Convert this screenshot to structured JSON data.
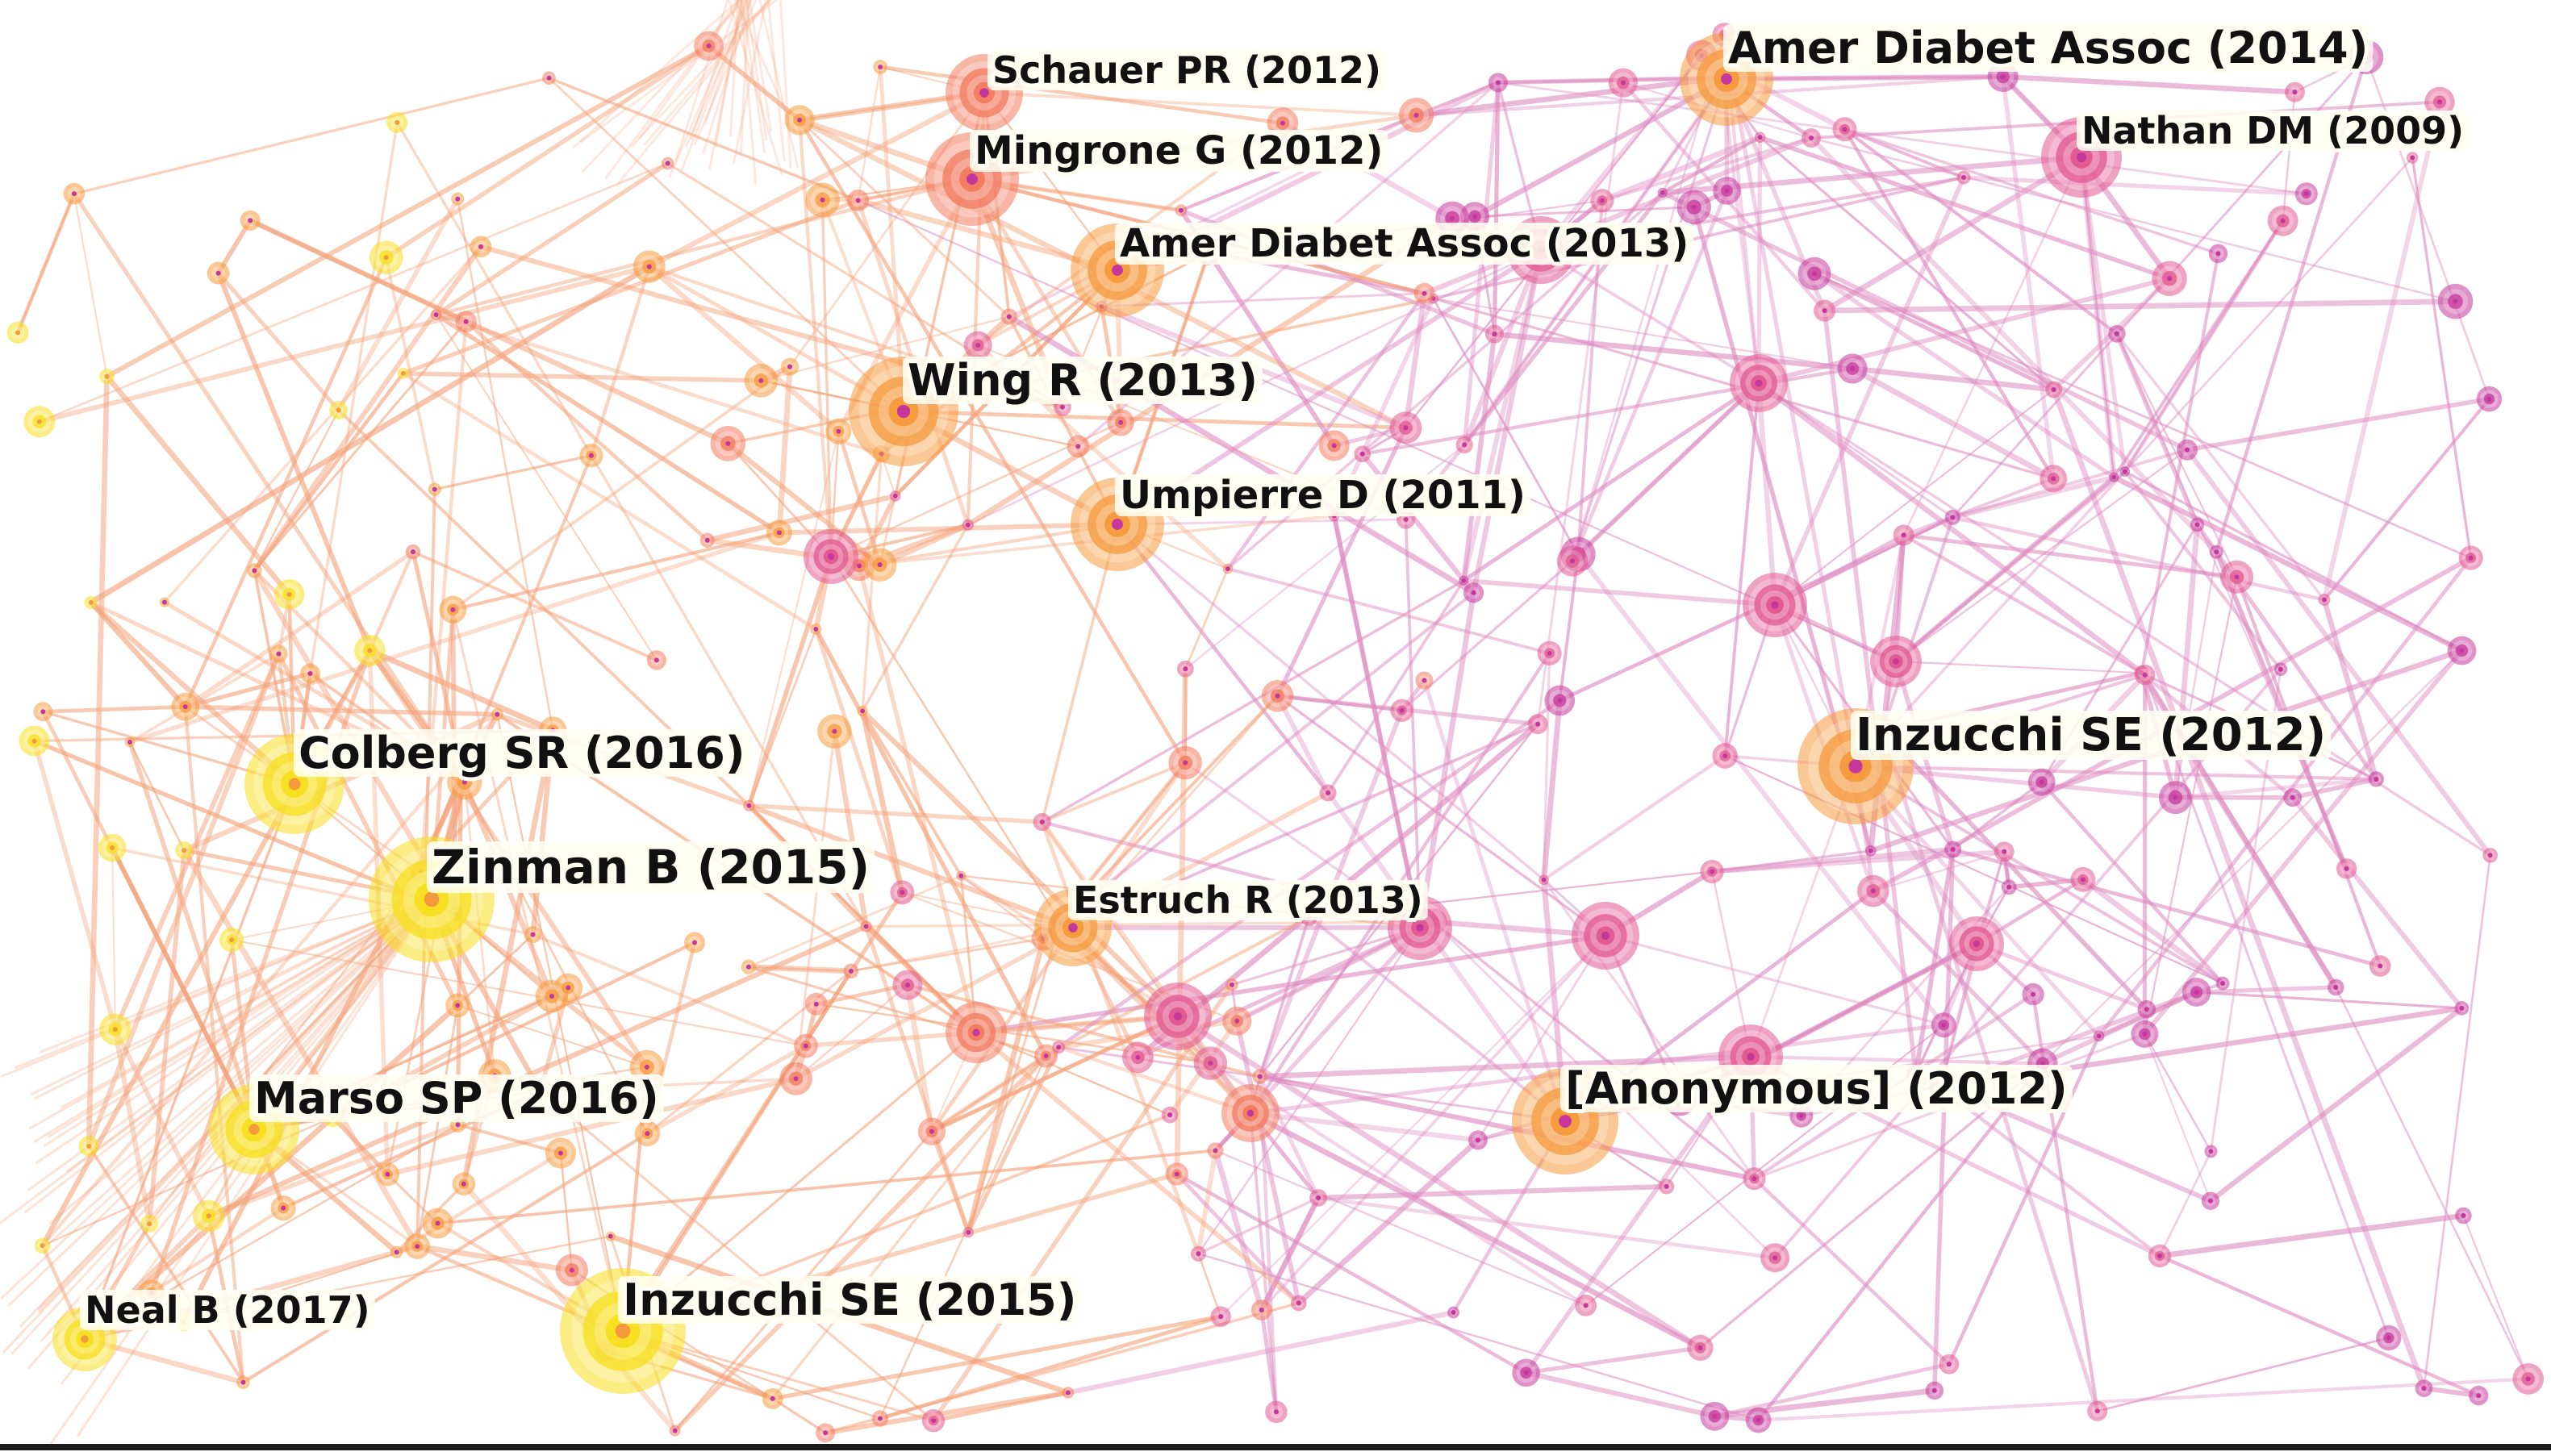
{
  "network": {
    "colors": {
      "yellow": "#f7df1e",
      "orange": "#f59a3c",
      "coral": "#f27a5e",
      "pink": "#e2578f",
      "magenta": "#c5389b",
      "link_warm": "#f3a27a",
      "link_cool": "#dd8ac0"
    },
    "labels": [
      {
        "id": "schauer-2012",
        "text": "Schauer PR (2012)"
      },
      {
        "id": "mingrone-2012",
        "text": "Mingrone G (2012)"
      },
      {
        "id": "ada-2013",
        "text": "Amer Diabet Assoc (2013)"
      },
      {
        "id": "ada-2014",
        "text": "Amer Diabet Assoc (2014)"
      },
      {
        "id": "nathan-2009",
        "text": "Nathan DM (2009)"
      },
      {
        "id": "wing-2013",
        "text": "Wing R (2013)"
      },
      {
        "id": "umpierre-2011",
        "text": "Umpierre D (2011)"
      },
      {
        "id": "colberg-2016",
        "text": "Colberg SR (2016)"
      },
      {
        "id": "inzucchi-2012",
        "text": "Inzucchi SE (2012)"
      },
      {
        "id": "zinman-2015",
        "text": "Zinman B (2015)"
      },
      {
        "id": "estruch-2013",
        "text": "Estruch R (2013)"
      },
      {
        "id": "marso-2016",
        "text": "Marso SP (2016)"
      },
      {
        "id": "anonymous-2012",
        "text": "[Anonymous] (2012)"
      },
      {
        "id": "neal-2017",
        "text": "Neal B (2017)"
      },
      {
        "id": "inzucchi-2015",
        "text": "Inzucchi SE (2015)"
      }
    ]
  }
}
